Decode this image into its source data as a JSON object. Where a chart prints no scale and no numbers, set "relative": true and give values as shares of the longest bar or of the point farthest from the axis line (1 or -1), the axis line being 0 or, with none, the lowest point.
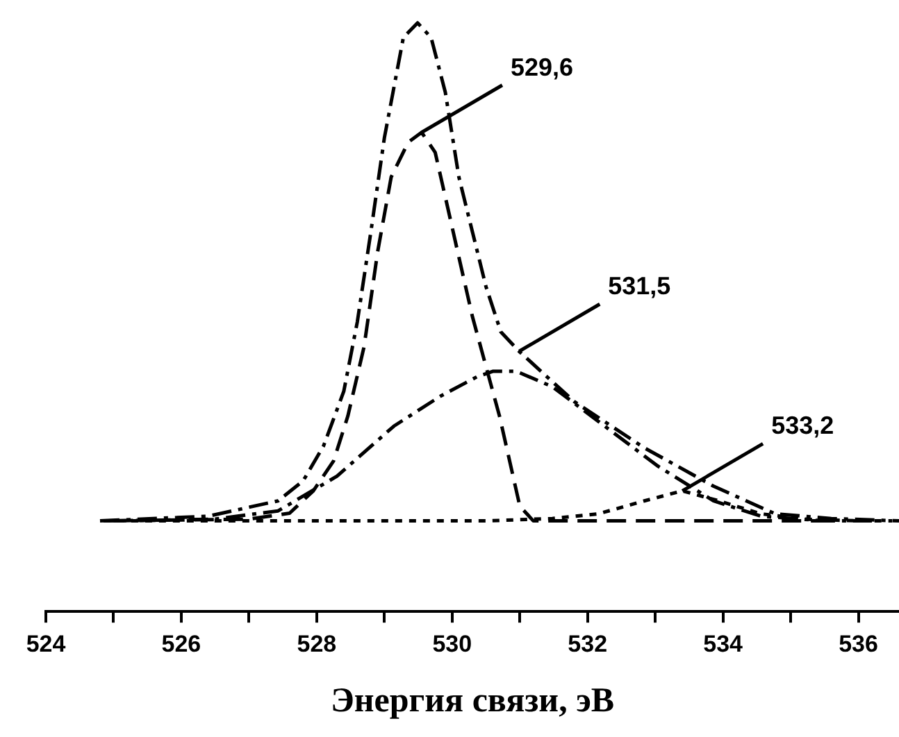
{
  "chart_data": {
    "type": "line",
    "relative": true,
    "xlabel": "Энергия связи, эВ",
    "xlim": [
      524,
      536.6
    ],
    "xticks": [
      524,
      {
        "value": 525,
        "label": null
      },
      526,
      {
        "value": 527,
        "label": null
      },
      528,
      {
        "value": 529,
        "label": null
      },
      530,
      {
        "value": 531,
        "label": null
      },
      532,
      {
        "value": 533,
        "label": null
      },
      534,
      {
        "value": 535,
        "label": null
      },
      536
    ],
    "marker": "none",
    "series": [
      {
        "color": "#000000",
        "line_style": "dashdot",
        "x": [
          524.8,
          526.4,
          527.43,
          527.8,
          528.1,
          528.4,
          528.6,
          528.8,
          529.0,
          529.28,
          529.49,
          529.69,
          529.9,
          530.1,
          530.3,
          530.5,
          530.72,
          530.99,
          531.8,
          532.84,
          533.86,
          534.77,
          535.6,
          536.6
        ],
        "values": [
          0.154,
          0.162,
          0.188,
          0.222,
          0.281,
          0.374,
          0.492,
          0.645,
          0.805,
          0.975,
          1,
          0.975,
          0.882,
          0.738,
          0.645,
          0.552,
          0.475,
          0.442,
          0.357,
          0.278,
          0.213,
          0.166,
          0.158,
          0.154
        ]
      },
      {
        "color": "#000000",
        "line_style": "dashed",
        "x": [
          524.9,
          527.0,
          527.6,
          527.95,
          528.25,
          528.46,
          528.7,
          528.9,
          529.1,
          529.35,
          529.55,
          529.75,
          529.9,
          530.1,
          530.3,
          530.7,
          531.0,
          531.2,
          535.6
        ],
        "values": [
          0.154,
          0.157,
          0.167,
          0.205,
          0.256,
          0.332,
          0.45,
          0.611,
          0.738,
          0.797,
          0.814,
          0.78,
          0.704,
          0.602,
          0.501,
          0.332,
          0.179,
          0.154,
          0.154
        ]
      },
      {
        "color": "#000000",
        "line_style": "dashdot",
        "x": [
          525.0,
          526.5,
          527.43,
          528.3,
          529.14,
          529.83,
          530.37,
          530.6,
          530.95,
          531.48,
          532.16,
          533.04,
          533.86,
          534.56,
          535.5,
          536.2
        ],
        "values": [
          0.154,
          0.157,
          0.171,
          0.23,
          0.315,
          0.366,
          0.399,
          0.408,
          0.408,
          0.382,
          0.323,
          0.247,
          0.188,
          0.162,
          0.154,
          0.154
        ]
      },
      {
        "color": "#000000",
        "line_style": "dotted",
        "x": [
          524.85,
          530.5,
          531.48,
          532.16,
          532.84,
          533.4,
          533.94,
          534.56,
          535.2,
          536.0,
          536.5
        ],
        "values": [
          0.154,
          0.154,
          0.158,
          0.166,
          0.188,
          0.205,
          0.188,
          0.166,
          0.157,
          0.154,
          0.154
        ]
      }
    ],
    "annotations": [
      {
        "text": "529,6",
        "x": 529.55,
        "y": 0.814
      },
      {
        "text": "531,5",
        "x": 530.99,
        "y": 0.442
      },
      {
        "text": "533,2",
        "x": 533.4,
        "y": 0.205
      }
    ]
  }
}
